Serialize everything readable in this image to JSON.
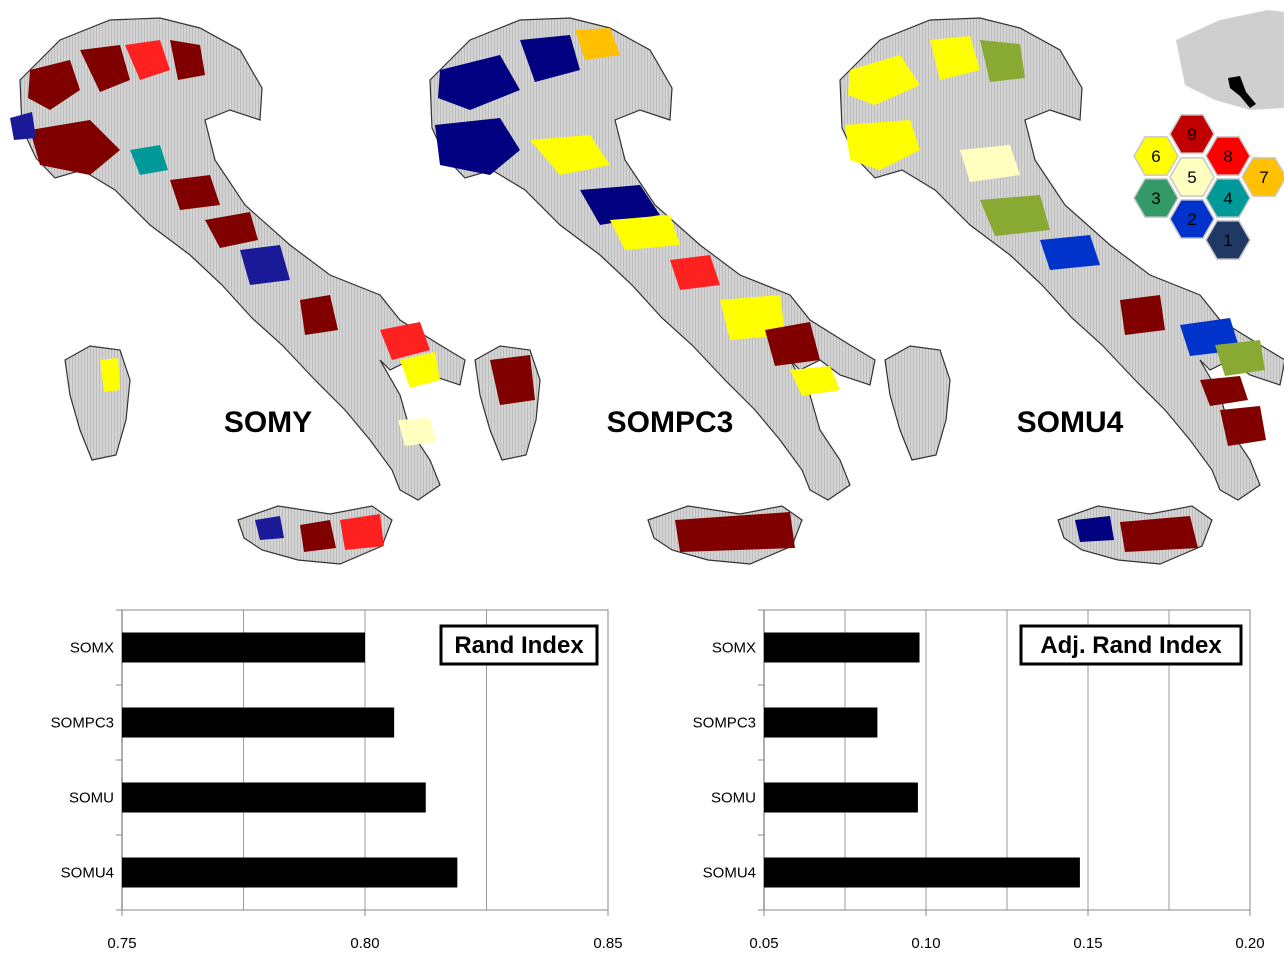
{
  "maps": [
    {
      "title": "SOMY"
    },
    {
      "title": "SOMPC3"
    },
    {
      "title": "SOMU4"
    }
  ],
  "hex_legend": {
    "cells": [
      {
        "n": "9",
        "color": "#c00000"
      },
      {
        "n": "6",
        "color": "#ffff00"
      },
      {
        "n": "8",
        "color": "#ff0000"
      },
      {
        "n": "5",
        "color": "#ffffc0"
      },
      {
        "n": "7",
        "color": "#ffc000"
      },
      {
        "n": "3",
        "color": "#339966"
      },
      {
        "n": "4",
        "color": "#009999"
      },
      {
        "n": "2",
        "color": "#0033cc"
      },
      {
        "n": "1",
        "color": "#1f3864"
      }
    ]
  },
  "chart_data": [
    {
      "type": "bar",
      "orientation": "horizontal",
      "categories": [
        "SOMX",
        "SOMPC3",
        "SOMU",
        "SOMU4"
      ],
      "values": [
        0.8,
        0.806,
        0.8125,
        0.819
      ],
      "title": "Rand Index",
      "xlim": [
        0.75,
        0.85
      ],
      "xticks": [
        "0.75",
        "0.80",
        "0.85"
      ],
      "grid": true,
      "bar_color": "#000000"
    },
    {
      "type": "bar",
      "orientation": "horizontal",
      "categories": [
        "SOMX",
        "SOMPC3",
        "SOMU",
        "SOMU4"
      ],
      "values": [
        0.098,
        0.085,
        0.0975,
        0.1475
      ],
      "title": "Adj. Rand Index",
      "xlim": [
        0.05,
        0.2
      ],
      "xticks": [
        "0.05",
        "0.10",
        "0.15",
        "0.20"
      ],
      "grid": true,
      "bar_color": "#000000"
    }
  ]
}
